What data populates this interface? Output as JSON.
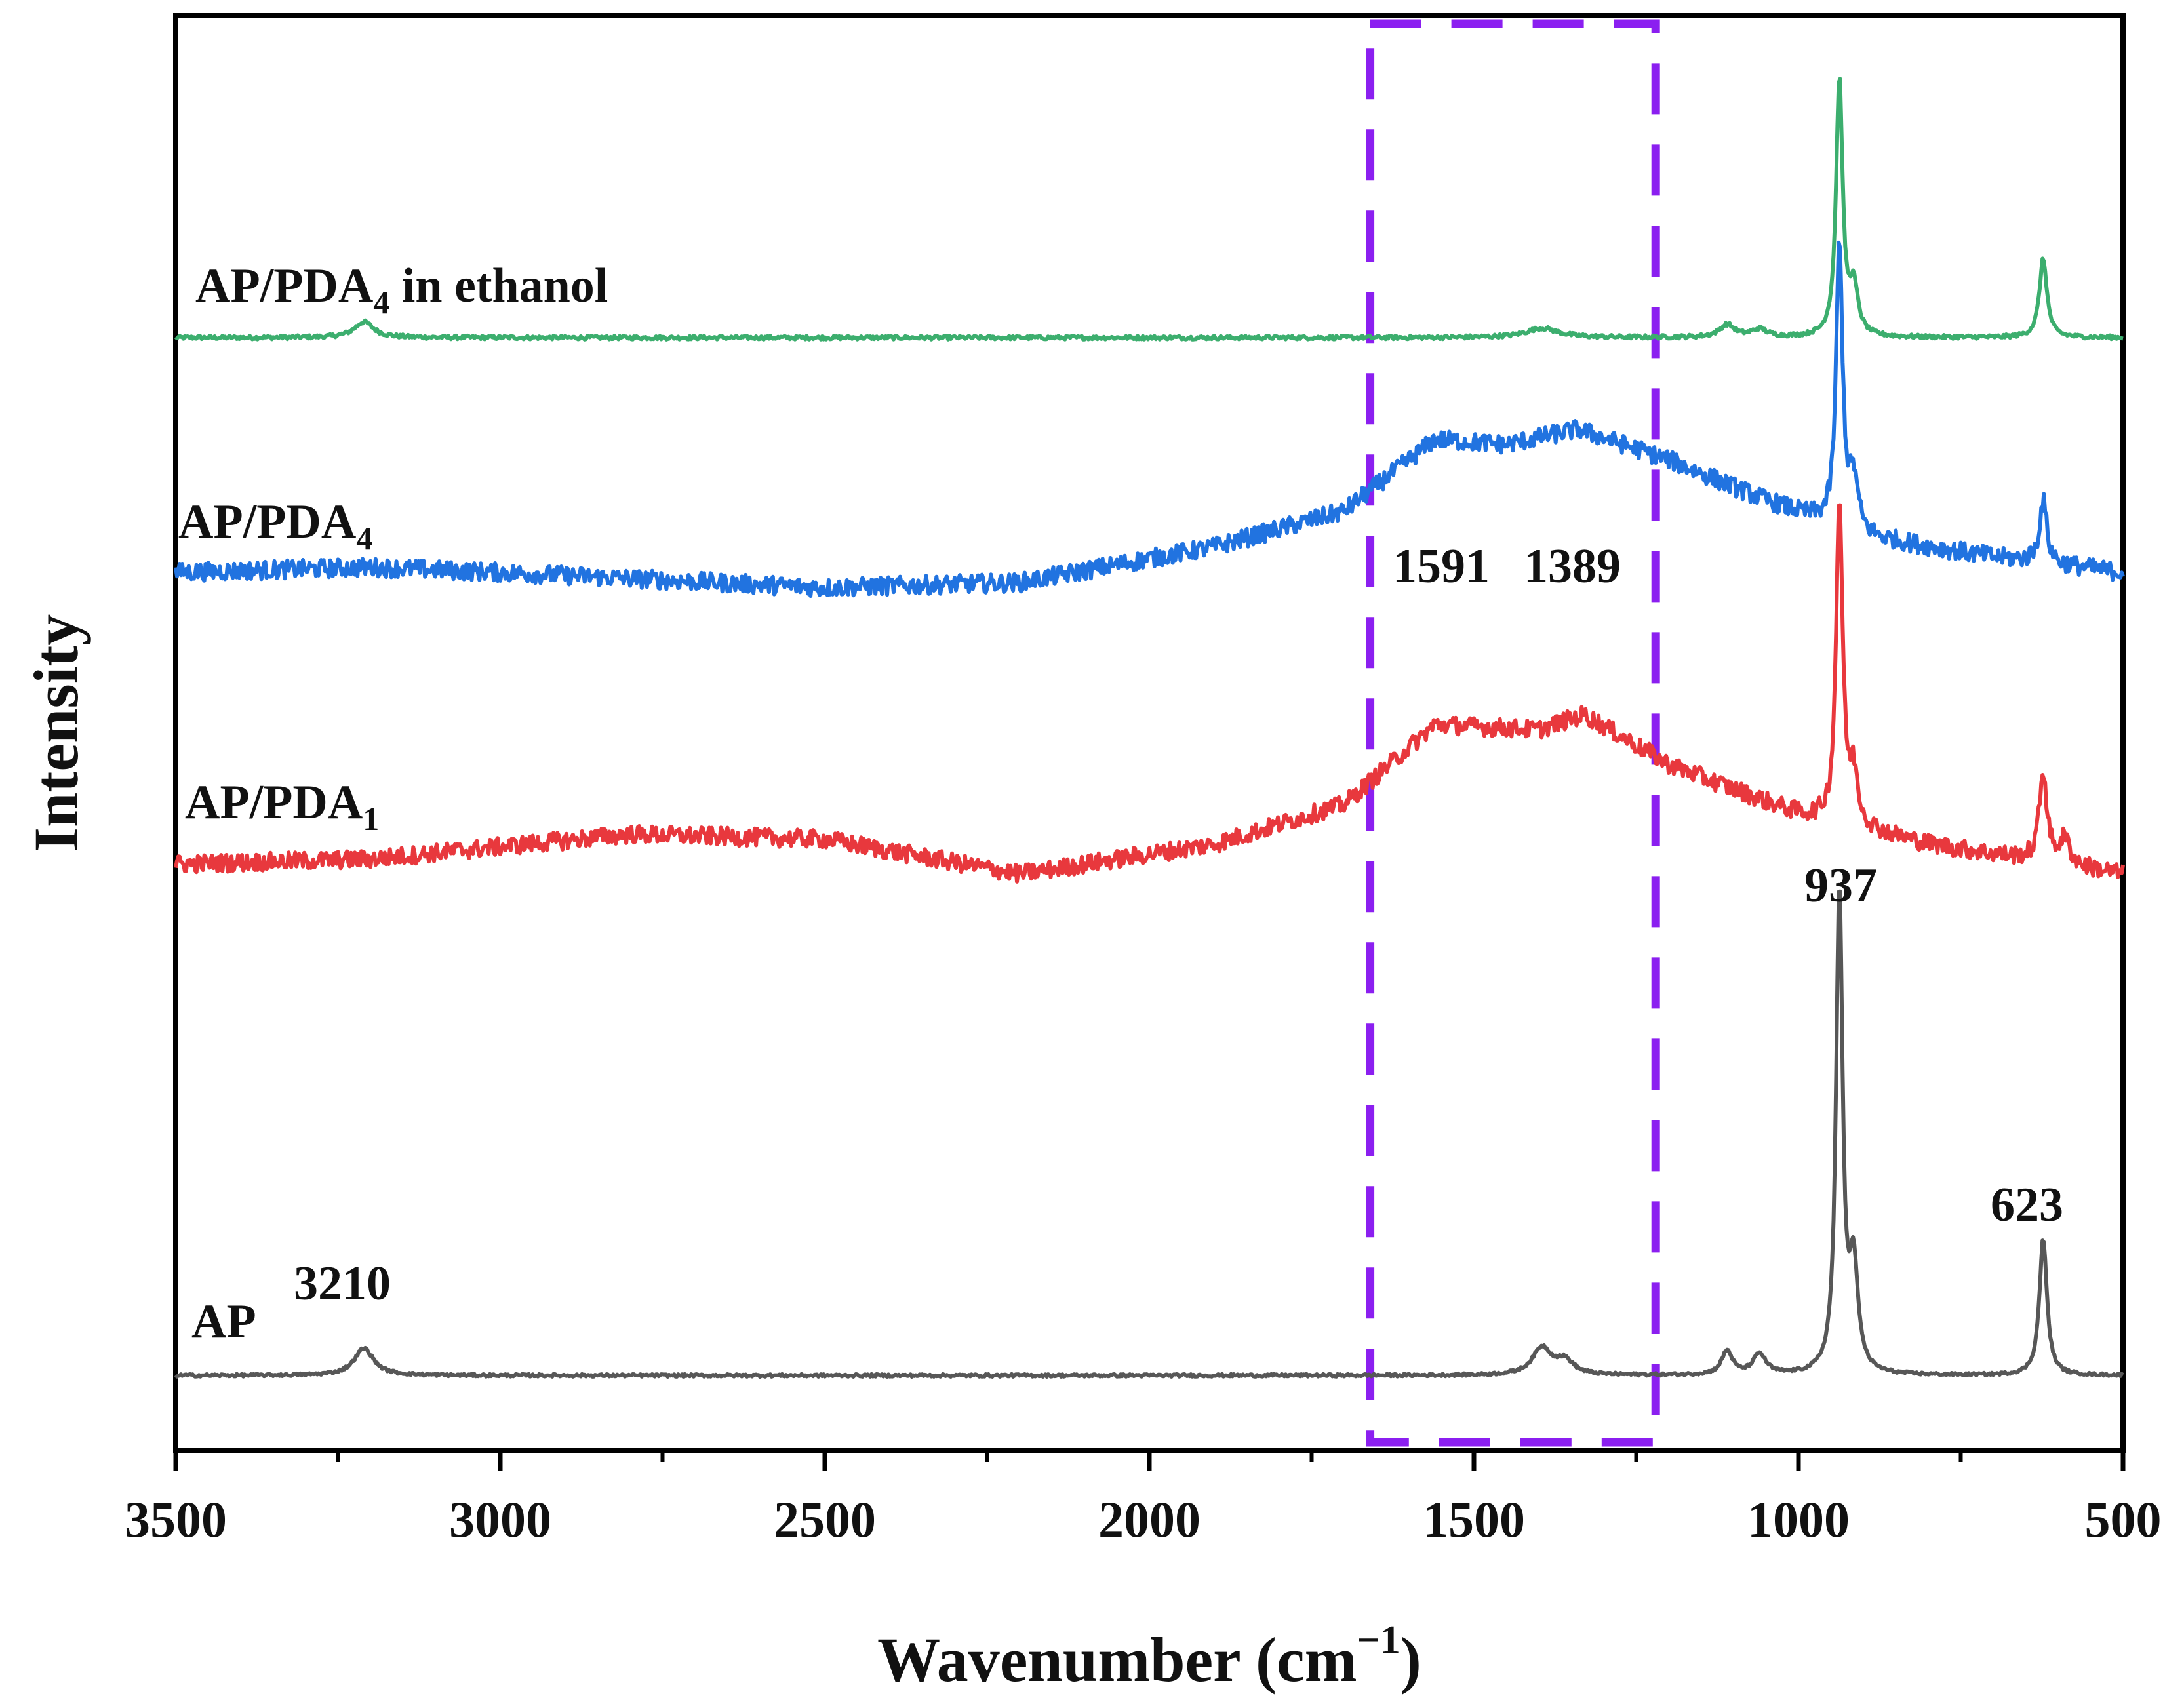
{
  "chart_data": {
    "type": "line",
    "title": "",
    "xlabel": "Wavenumber (cm−1)",
    "xlabel_parts": {
      "main": "Wavenumber (cm",
      "sup": "−1",
      "close": ")"
    },
    "ylabel": "Intensity",
    "xlim": [
      3500,
      500
    ],
    "x_reversed": true,
    "y_ticks_shown": false,
    "x_major_ticks": [
      3500,
      3000,
      2500,
      2000,
      1500,
      1000,
      500
    ],
    "x_tick_labels": [
      "3500",
      "3000",
      "2500",
      "2000",
      "1500",
      "1000",
      "500"
    ],
    "highlight_region": {
      "x": [
        1660,
        1220
      ],
      "color": "#8b1ff0",
      "style": "dashed"
    },
    "series": [
      {
        "name": "AP/PDA4 in ethanol",
        "label_parts": {
          "main": "AP/PDA",
          "sub": "4",
          "rest": " in ethanol"
        },
        "color": "#3cae6e",
        "offset": 3.0,
        "noise": 0.006,
        "baseline": [
          [
            3500,
            0
          ],
          [
            500,
            0
          ]
        ],
        "peaks": [
          [
            3210,
            0.05,
            18
          ],
          [
            1395,
            0.03,
            30
          ],
          [
            1110,
            0.04,
            14
          ],
          [
            1060,
            0.025,
            14
          ],
          [
            937,
            0.82,
            6
          ],
          [
            915,
            0.15,
            8
          ],
          [
            623,
            0.25,
            7
          ]
        ]
      },
      {
        "name": "AP/PDA4",
        "label_parts": {
          "main": "AP/PDA",
          "sub": "4",
          "rest": ""
        },
        "color": "#2173e0",
        "offset": 2.0,
        "noise": 0.018,
        "baseline": [
          [
            3500,
            0.0
          ],
          [
            3200,
            0.01
          ],
          [
            3000,
            0.0
          ],
          [
            2500,
            -0.03
          ],
          [
            2200,
            -0.02
          ],
          [
            1900,
            0.05
          ],
          [
            1700,
            0.12
          ],
          [
            1560,
            0.26
          ],
          [
            1450,
            0.25
          ],
          [
            1340,
            0.28
          ],
          [
            1200,
            0.22
          ],
          [
            1050,
            0.14
          ],
          [
            900,
            0.07
          ],
          [
            700,
            0.03
          ],
          [
            500,
            0.0
          ]
        ],
        "peaks": [
          [
            937,
            0.55,
            6
          ],
          [
            915,
            0.1,
            8
          ],
          [
            623,
            0.12,
            7
          ]
        ]
      },
      {
        "name": "AP/PDA1",
        "label_parts": {
          "main": "AP/PDA",
          "sub": "1",
          "rest": ""
        },
        "color": "#e8383d",
        "offset": 1.0,
        "noise": 0.018,
        "baseline": [
          [
            3500,
            0.0
          ],
          [
            3200,
            0.01
          ],
          [
            2800,
            0.06
          ],
          [
            2500,
            0.05
          ],
          [
            2200,
            -0.02
          ],
          [
            1900,
            0.04
          ],
          [
            1700,
            0.12
          ],
          [
            1560,
            0.28
          ],
          [
            1400,
            0.27
          ],
          [
            1330,
            0.3
          ],
          [
            1200,
            0.2
          ],
          [
            1000,
            0.1
          ],
          [
            800,
            0.04
          ],
          [
            500,
            -0.02
          ]
        ],
        "peaks": [
          [
            937,
            0.65,
            6
          ],
          [
            915,
            0.1,
            8
          ],
          [
            623,
            0.18,
            7
          ],
          [
            590,
            0.05,
            10
          ]
        ]
      },
      {
        "name": "AP",
        "label_parts": {
          "main": "AP",
          "sub": "",
          "rest": ""
        },
        "color": "#575757",
        "offset": 0.0,
        "noise": 0.004,
        "baseline": [
          [
            3500,
            0
          ],
          [
            500,
            0
          ]
        ],
        "peaks": [
          [
            3210,
            0.08,
            18
          ],
          [
            1395,
            0.08,
            18
          ],
          [
            1360,
            0.04,
            16
          ],
          [
            1110,
            0.07,
            10
          ],
          [
            1060,
            0.06,
            12
          ],
          [
            937,
            1.42,
            6
          ],
          [
            915,
            0.3,
            8
          ],
          [
            623,
            0.4,
            7
          ]
        ]
      }
    ],
    "annotations": [
      {
        "text": "3210",
        "x": 3210
      },
      {
        "text": "1591",
        "x": 1591
      },
      {
        "text": "1389",
        "x": 1389
      },
      {
        "text": "937",
        "x": 937
      },
      {
        "text": "623",
        "x": 623
      }
    ]
  }
}
